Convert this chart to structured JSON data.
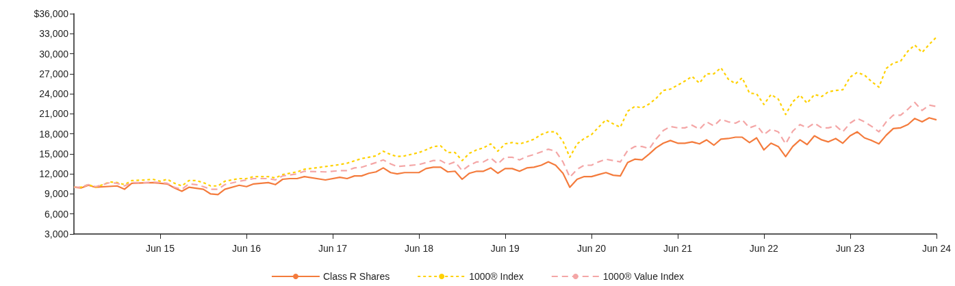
{
  "chart_data": {
    "type": "line",
    "legend": "bottom",
    "grid": false,
    "marker": "none",
    "xlim": [
      "2014-06",
      "2024-06"
    ],
    "xticks": [
      {
        "value": "2015-06",
        "label": "Jun 15"
      },
      {
        "value": "2016-06",
        "label": "Jun 16"
      },
      {
        "value": "2017-06",
        "label": "Jun 17"
      },
      {
        "value": "2018-06",
        "label": "Jun 18"
      },
      {
        "value": "2019-06",
        "label": "Jun 19"
      },
      {
        "value": "2020-06",
        "label": "Jun 20"
      },
      {
        "value": "2021-06",
        "label": "Jun 21"
      },
      {
        "value": "2022-06",
        "label": "Jun 22"
      },
      {
        "value": "2023-06",
        "label": "Jun 23"
      },
      {
        "value": "2024-06",
        "label": "Jun 24"
      }
    ],
    "ylim": [
      3000,
      36000
    ],
    "yticks": [
      {
        "value": 3000,
        "label": "3,000"
      },
      {
        "value": 6000,
        "label": "6,000"
      },
      {
        "value": 9000,
        "label": "9,000"
      },
      {
        "value": 12000,
        "label": "12,000"
      },
      {
        "value": 15000,
        "label": "15,000"
      },
      {
        "value": 18000,
        "label": "18,000"
      },
      {
        "value": 21000,
        "label": "21,000"
      },
      {
        "value": 24000,
        "label": "24,000"
      },
      {
        "value": 27000,
        "label": "27,000"
      },
      {
        "value": 30000,
        "label": "30,000"
      },
      {
        "value": 33000,
        "label": "33,000"
      },
      {
        "value": 36000,
        "label": "$36,000"
      }
    ],
    "series": [
      {
        "name": "Class R Shares",
        "color": "#f47b3c",
        "line_style": "solid",
        "x": [
          "2014-06",
          "2014-07",
          "2014-08",
          "2014-09",
          "2014-12",
          "2015-01",
          "2015-02",
          "2015-05",
          "2015-06",
          "2015-07",
          "2015-08",
          "2015-09",
          "2015-10",
          "2015-12",
          "2016-01",
          "2016-02",
          "2016-03",
          "2016-05",
          "2016-06",
          "2016-07",
          "2016-09",
          "2016-10",
          "2016-11",
          "2016-12",
          "2017-01",
          "2017-02",
          "2017-05",
          "2017-07",
          "2017-08",
          "2017-09",
          "2017-10",
          "2017-11",
          "2017-12",
          "2018-01",
          "2018-02",
          "2018-03",
          "2018-04",
          "2018-06",
          "2018-07",
          "2018-08",
          "2018-09",
          "2018-10",
          "2018-11",
          "2018-12",
          "2019-01",
          "2019-02",
          "2019-03",
          "2019-04",
          "2019-05",
          "2019-06",
          "2019-07",
          "2019-08",
          "2019-09",
          "2019-10",
          "2019-11",
          "2019-12",
          "2020-01",
          "2020-02",
          "2020-03",
          "2020-04",
          "2020-05",
          "2020-06",
          "2020-07",
          "2020-08",
          "2020-09",
          "2020-10",
          "2020-11",
          "2020-12",
          "2021-01",
          "2021-02",
          "2021-03",
          "2021-04",
          "2021-05",
          "2021-06",
          "2021-07",
          "2021-08",
          "2021-09",
          "2021-10",
          "2021-11",
          "2021-12",
          "2022-01",
          "2022-02",
          "2022-03",
          "2022-04",
          "2022-05",
          "2022-06",
          "2022-07",
          "2022-08",
          "2022-09",
          "2022-10",
          "2022-11",
          "2022-12",
          "2023-01",
          "2023-02",
          "2023-03",
          "2023-04",
          "2023-05",
          "2023-06",
          "2023-07",
          "2023-08",
          "2023-09",
          "2023-10",
          "2023-11",
          "2023-12",
          "2024-01",
          "2024-02",
          "2024-03",
          "2024-04",
          "2024-05",
          "2024-06"
        ],
        "values": [
          10000,
          9900,
          10300,
          10000,
          10200,
          9700,
          10600,
          10700,
          10600,
          10500,
          9900,
          9400,
          10000,
          9700,
          9000,
          8900,
          9700,
          10300,
          10100,
          10500,
          10700,
          10400,
          11200,
          11300,
          11300,
          11600,
          11100,
          11500,
          11300,
          11700,
          11700,
          12100,
          12300,
          12900,
          12200,
          12000,
          12200,
          12200,
          12800,
          13000,
          13000,
          12300,
          12400,
          11200,
          12100,
          12400,
          12400,
          12900,
          12100,
          12800,
          12800,
          12400,
          12900,
          13000,
          13300,
          13800,
          13300,
          12100,
          10000,
          11200,
          11600,
          11600,
          11900,
          12200,
          11800,
          11700,
          13700,
          14200,
          14100,
          15000,
          15900,
          16600,
          17000,
          16600,
          16600,
          16800,
          16500,
          17100,
          16300,
          17200,
          17300,
          17500,
          17500,
          16700,
          17400,
          15600,
          16600,
          16100,
          14600,
          16100,
          17100,
          16400,
          17700,
          17100,
          16800,
          17300,
          16600,
          17700,
          18300,
          17400,
          17000,
          16500,
          17800,
          18800,
          18900,
          19400,
          20300,
          19800,
          20400,
          20100
        ]
      },
      {
        "name": "1000® Index",
        "color": "#ffd100",
        "line_style": "dotted",
        "x": [
          "2014-06",
          "2014-07",
          "2014-08",
          "2014-09",
          "2014-11",
          "2014-12",
          "2015-01",
          "2015-02",
          "2015-04",
          "2015-05",
          "2015-06",
          "2015-07",
          "2015-08",
          "2015-09",
          "2015-10",
          "2015-11",
          "2015-12",
          "2016-01",
          "2016-02",
          "2016-03",
          "2016-05",
          "2016-06",
          "2016-07",
          "2016-09",
          "2016-10",
          "2016-11",
          "2017-01",
          "2017-02",
          "2017-05",
          "2017-07",
          "2017-08",
          "2017-10",
          "2017-12",
          "2018-01",
          "2018-02",
          "2018-03",
          "2018-04",
          "2018-06",
          "2018-07",
          "2018-08",
          "2018-09",
          "2018-10",
          "2018-11",
          "2018-12",
          "2019-01",
          "2019-02",
          "2019-03",
          "2019-04",
          "2019-05",
          "2019-06",
          "2019-07",
          "2019-08",
          "2019-09",
          "2019-10",
          "2019-11",
          "2019-12",
          "2020-01",
          "2020-02",
          "2020-03",
          "2020-04",
          "2020-05",
          "2020-06",
          "2020-07",
          "2020-08",
          "2020-09",
          "2020-10",
          "2020-11",
          "2020-12",
          "2021-01",
          "2021-02",
          "2021-03",
          "2021-04",
          "2021-05",
          "2021-06",
          "2021-07",
          "2021-08",
          "2021-09",
          "2021-10",
          "2021-11",
          "2021-12",
          "2022-01",
          "2022-02",
          "2022-03",
          "2022-04",
          "2022-05",
          "2022-06",
          "2022-07",
          "2022-08",
          "2022-09",
          "2022-10",
          "2022-11",
          "2022-12",
          "2023-01",
          "2023-02",
          "2023-03",
          "2023-04",
          "2023-05",
          "2023-06",
          "2023-07",
          "2023-08",
          "2023-09",
          "2023-10",
          "2023-11",
          "2023-12",
          "2024-01",
          "2024-02",
          "2024-03",
          "2024-04",
          "2024-05",
          "2024-06"
        ],
        "values": [
          10000,
          10000,
          10400,
          10000,
          10800,
          10700,
          10400,
          11000,
          11100,
          11200,
          10900,
          11200,
          10600,
          10200,
          11000,
          11000,
          10700,
          10200,
          10200,
          10900,
          11300,
          11300,
          11600,
          11600,
          11400,
          11900,
          12300,
          12700,
          13100,
          13400,
          13600,
          14300,
          14700,
          15400,
          14900,
          14600,
          14700,
          15200,
          15600,
          16100,
          16200,
          15200,
          15200,
          14000,
          15100,
          15600,
          15900,
          16500,
          15400,
          16500,
          16700,
          16500,
          16800,
          17200,
          17900,
          18300,
          18300,
          16900,
          14500,
          16500,
          17300,
          17900,
          19000,
          20100,
          19500,
          19000,
          21400,
          22100,
          21900,
          22500,
          23300,
          24500,
          24700,
          25300,
          25900,
          26600,
          25600,
          27000,
          27000,
          27900,
          26200,
          25500,
          26400,
          24100,
          24000,
          22400,
          23900,
          23200,
          20900,
          22800,
          23800,
          22600,
          23900,
          23600,
          24300,
          24500,
          24600,
          26500,
          27200,
          26800,
          25800,
          25000,
          27800,
          28600,
          28900,
          30400,
          31300,
          30200,
          31400,
          32500
        ]
      },
      {
        "name": "1000® Value Index",
        "color": "#f4a6a6",
        "line_style": "dashed",
        "x": [
          "2014-06",
          "2014-07",
          "2014-08",
          "2014-09",
          "2014-11",
          "2014-12",
          "2015-01",
          "2015-02",
          "2015-04",
          "2015-05",
          "2015-06",
          "2015-07",
          "2015-08",
          "2015-09",
          "2015-10",
          "2015-11",
          "2015-12",
          "2016-01",
          "2016-02",
          "2016-03",
          "2016-05",
          "2016-06",
          "2016-07",
          "2016-09",
          "2016-10",
          "2016-11",
          "2017-01",
          "2017-02",
          "2017-05",
          "2017-07",
          "2017-08",
          "2017-09",
          "2017-10",
          "2017-12",
          "2018-01",
          "2018-02",
          "2018-03",
          "2018-06",
          "2018-08",
          "2018-09",
          "2018-10",
          "2018-11",
          "2018-12",
          "2019-01",
          "2019-02",
          "2019-03",
          "2019-04",
          "2019-05",
          "2019-06",
          "2019-07",
          "2019-08",
          "2019-09",
          "2019-10",
          "2019-11",
          "2019-12",
          "2020-01",
          "2020-02",
          "2020-03",
          "2020-04",
          "2020-05",
          "2020-06",
          "2020-07",
          "2020-08",
          "2020-09",
          "2020-10",
          "2020-11",
          "2020-12",
          "2021-01",
          "2021-02",
          "2021-03",
          "2021-04",
          "2021-05",
          "2021-06",
          "2021-07",
          "2021-08",
          "2021-09",
          "2021-10",
          "2021-11",
          "2021-12",
          "2022-01",
          "2022-02",
          "2022-03",
          "2022-04",
          "2022-05",
          "2022-06",
          "2022-07",
          "2022-08",
          "2022-09",
          "2022-10",
          "2022-11",
          "2022-12",
          "2023-01",
          "2023-02",
          "2023-03",
          "2023-04",
          "2023-05",
          "2023-06",
          "2023-07",
          "2023-08",
          "2023-09",
          "2023-10",
          "2023-11",
          "2023-12",
          "2024-01",
          "2024-02",
          "2024-03",
          "2024-04",
          "2024-05",
          "2024-06"
        ],
        "values": [
          10000,
          10000,
          10400,
          10100,
          10700,
          10600,
          10200,
          10700,
          10700,
          10800,
          10700,
          10600,
          10000,
          9700,
          10500,
          10400,
          10100,
          9700,
          9700,
          10400,
          10900,
          11100,
          11300,
          11300,
          11100,
          11700,
          12000,
          12400,
          12300,
          12500,
          12500,
          12900,
          13000,
          13700,
          14100,
          13500,
          13100,
          13400,
          14000,
          14000,
          13400,
          13800,
          12500,
          13300,
          13800,
          13800,
          14400,
          13500,
          14500,
          14500,
          14100,
          14600,
          14900,
          15300,
          15700,
          15400,
          13800,
          11500,
          12700,
          13300,
          13300,
          13800,
          14200,
          14000,
          13800,
          15500,
          16100,
          16100,
          15800,
          17200,
          18500,
          19100,
          18900,
          18900,
          19300,
          18700,
          19800,
          19200,
          20200,
          19800,
          19600,
          20100,
          18900,
          19300,
          17900,
          18700,
          18300,
          16500,
          18400,
          19400,
          18900,
          19600,
          18900,
          18900,
          19200,
          18300,
          19600,
          20300,
          19800,
          19100,
          18300,
          19800,
          20800,
          20800,
          21700,
          22700,
          21500,
          22300,
          22100
        ]
      }
    ]
  }
}
